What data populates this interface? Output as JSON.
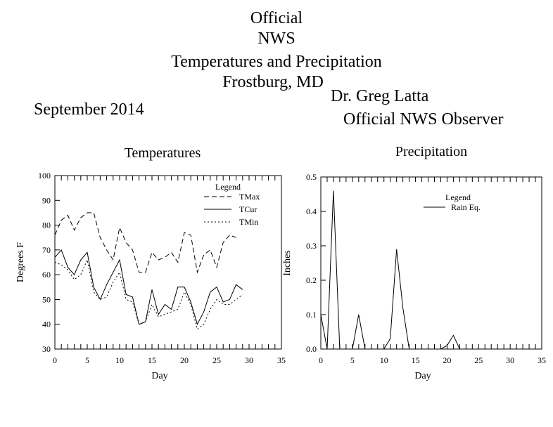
{
  "header": {
    "title_lines": [
      "Official",
      "NWS",
      "Temperatures and Precipitation",
      "Frostburg, MD"
    ],
    "period": "September 2014",
    "observer_name": "Dr. Greg Latta",
    "observer_title": "Official NWS Observer"
  },
  "chart_data": [
    {
      "type": "line",
      "title": "Temperatures",
      "xlabel": "Day",
      "ylabel": "Degrees F",
      "xlim": [
        0,
        35
      ],
      "ylim": [
        30,
        100
      ],
      "xticks": [
        0,
        5,
        10,
        15,
        20,
        25,
        30,
        35
      ],
      "yticks": [
        30,
        40,
        50,
        60,
        70,
        80,
        90,
        100
      ],
      "grid": false,
      "legend": {
        "title": "Legend",
        "placement": "top-right"
      },
      "x": [
        0,
        1,
        2,
        3,
        4,
        5,
        6,
        7,
        8,
        9,
        10,
        11,
        12,
        13,
        14,
        15,
        16,
        17,
        18,
        19,
        20,
        21,
        22,
        23,
        24,
        25,
        26,
        27,
        28,
        29
      ],
      "series": [
        {
          "name": "TMax",
          "style": "dashed",
          "values": [
            76,
            82,
            84,
            78,
            83,
            85,
            85,
            75,
            70,
            66,
            79,
            73,
            70,
            61,
            61,
            69,
            66,
            67,
            69,
            65,
            77,
            76,
            61,
            68,
            70,
            63,
            73,
            76,
            75,
            null
          ]
        },
        {
          "name": "TCur",
          "style": "solid",
          "values": [
            67,
            70,
            63,
            60,
            66,
            69,
            55,
            50,
            56,
            61,
            66,
            52,
            51,
            40,
            41,
            54,
            44,
            48,
            46,
            55,
            55,
            49,
            40,
            45,
            53,
            55,
            49,
            50,
            56,
            54
          ]
        },
        {
          "name": "TMin",
          "style": "dotted",
          "values": [
            65,
            64,
            62,
            58,
            60,
            66,
            53,
            50,
            51,
            57,
            61,
            50,
            49,
            40,
            41,
            48,
            43,
            44,
            45,
            46,
            53,
            48,
            38,
            40,
            46,
            50,
            48,
            48,
            50,
            52
          ]
        }
      ]
    },
    {
      "type": "line",
      "title": "Precipitation",
      "xlabel": "Day",
      "ylabel": "Inches",
      "xlim": [
        0,
        35
      ],
      "ylim": [
        0.0,
        0.5
      ],
      "xticks": [
        0,
        5,
        10,
        15,
        20,
        25,
        30,
        35
      ],
      "yticks": [
        0.0,
        0.1,
        0.2,
        0.3,
        0.4,
        0.5
      ],
      "ytick_labels": [
        "0.0",
        "0.1",
        "0.2",
        "0.3",
        "0.4",
        "0.5"
      ],
      "grid": false,
      "legend": {
        "title": "Legend",
        "placement": "top-right"
      },
      "x": [
        0,
        1,
        2,
        3,
        4,
        5,
        6,
        7,
        8,
        9,
        10,
        11,
        12,
        13,
        14,
        15,
        16,
        17,
        18,
        19,
        20,
        21,
        22,
        23,
        24,
        25,
        26,
        27,
        28,
        29
      ],
      "series": [
        {
          "name": "Rain Eq.",
          "style": "solid",
          "values": [
            0.1,
            0,
            0.46,
            0,
            0,
            0,
            0.1,
            0,
            0,
            0,
            0,
            0.03,
            0.29,
            0.12,
            0,
            0,
            0,
            0,
            0,
            0,
            0.01,
            0.04,
            0,
            0,
            0,
            0,
            0,
            0,
            0,
            0
          ]
        }
      ]
    }
  ]
}
